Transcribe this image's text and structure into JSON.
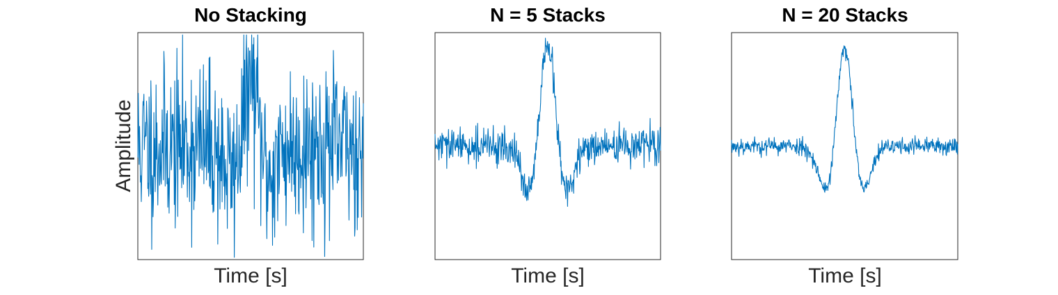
{
  "chart_data": [
    {
      "type": "line",
      "title": "No Stacking",
      "xlabel": "Time [s]",
      "ylabel": "Amplitude",
      "ticks": "none",
      "grid": false,
      "color": "#0072BD",
      "xlim": [
        0,
        1
      ],
      "ylim": [
        -1,
        1
      ],
      "noise_level": 0.95,
      "wavelet_amplitude": 0.55
    },
    {
      "type": "line",
      "title": "N =  5 Stacks",
      "xlabel": "Time [s]",
      "ylabel": "",
      "ticks": "none",
      "grid": false,
      "color": "#0072BD",
      "xlim": [
        0,
        1
      ],
      "ylim": [
        -1,
        1
      ],
      "noise_level": 0.2,
      "wavelet_amplitude": 0.88
    },
    {
      "type": "line",
      "title": "N =  20 Stacks",
      "xlabel": "Time [s]",
      "ylabel": "",
      "ticks": "none",
      "grid": false,
      "color": "#0072BD",
      "xlim": [
        0,
        1
      ],
      "ylim": [
        -1,
        1
      ],
      "noise_level": 0.1,
      "wavelet_amplitude": 0.85
    }
  ]
}
